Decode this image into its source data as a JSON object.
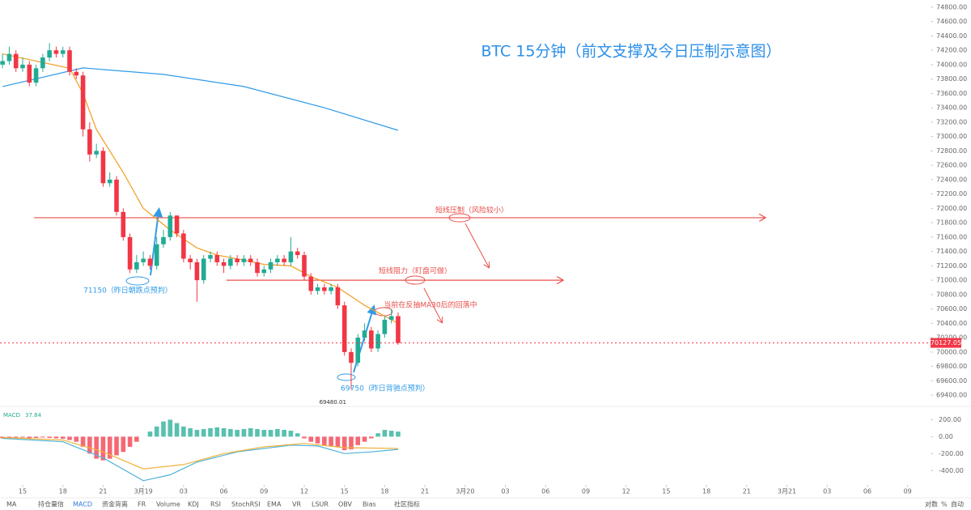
{
  "chart_data": [
    {
      "type": "candlestick",
      "title": "BTC  15分钟（前文支撑及今日压制示意图）",
      "up_color": "#22ab94",
      "down_color": "#f23645",
      "x": [
        -1.5,
        -1,
        -0.5,
        0,
        0.5,
        1,
        1.5,
        2,
        2.5,
        3,
        3.5,
        4,
        4.5,
        5,
        5.5,
        6,
        6.5,
        7,
        7.5,
        8,
        8.5,
        9,
        9.5,
        10,
        10.5,
        11,
        11.5,
        12,
        12.5,
        13,
        13.5,
        14,
        14.5,
        15,
        15.5,
        16,
        16.5,
        17,
        17.5,
        18,
        18.5,
        19,
        19.5,
        20,
        20.5,
        21,
        21.5,
        22,
        22.5,
        23,
        23.5,
        24,
        24.5,
        25,
        25.5,
        26,
        26.5,
        27,
        27.5,
        28
      ],
      "open": [
        74000,
        74050,
        74150,
        73950,
        74000,
        73750,
        73950,
        74100,
        74200,
        74150,
        74200,
        73900,
        73850,
        73100,
        72750,
        72800,
        72350,
        72400,
        71950,
        71600,
        71150,
        71250,
        71300,
        71200,
        71500,
        71600,
        71900,
        71650,
        71300,
        71250,
        71000,
        71300,
        71350,
        71250,
        71200,
        71300,
        71250,
        71300,
        71250,
        71100,
        71150,
        71250,
        71300,
        71250,
        71400,
        71350,
        71050,
        70850,
        70900,
        70850,
        70900,
        70650,
        70000,
        69850,
        70200,
        70300,
        70050,
        70250,
        70450,
        70500
      ],
      "high": [
        74150,
        74250,
        74200,
        74100,
        74050,
        74000,
        74150,
        74300,
        74250,
        74250,
        74250,
        73950,
        73900,
        73200,
        72900,
        72850,
        72500,
        72450,
        72000,
        71650,
        71350,
        71400,
        71350,
        71600,
        71700,
        71950,
        71900,
        71700,
        71350,
        71300,
        71350,
        71400,
        71400,
        71300,
        71350,
        71350,
        71350,
        71350,
        71300,
        71200,
        71300,
        71350,
        71350,
        71600,
        71450,
        71400,
        71100,
        70950,
        70950,
        70950,
        70950,
        70700,
        70050,
        70250,
        70400,
        70350,
        70300,
        70500,
        70600,
        70550
      ],
      "low": [
        73950,
        74000,
        73900,
        73900,
        73700,
        73700,
        73900,
        74050,
        74100,
        74100,
        73850,
        73800,
        73000,
        72650,
        72700,
        72300,
        72300,
        71900,
        71550,
        71100,
        71100,
        71200,
        71150,
        71150,
        71450,
        71550,
        71600,
        71250,
        71150,
        70700,
        70950,
        71250,
        71200,
        71100,
        71150,
        71200,
        71200,
        71200,
        71050,
        71050,
        71100,
        71200,
        71200,
        71200,
        71300,
        71000,
        70800,
        70800,
        70800,
        70800,
        70600,
        69950,
        69480.01,
        69800,
        70150,
        70000,
        70000,
        70200,
        70400,
        70100
      ],
      "close": [
        74050,
        74150,
        73950,
        74000,
        73750,
        73950,
        74100,
        74200,
        74150,
        74200,
        73900,
        73850,
        73100,
        72750,
        72800,
        72350,
        72400,
        71950,
        71600,
        71150,
        71250,
        71300,
        71200,
        71500,
        71600,
        71900,
        71650,
        71300,
        71250,
        71000,
        71300,
        71350,
        71250,
        71200,
        71300,
        71250,
        71300,
        71250,
        71100,
        71150,
        71250,
        71300,
        71250,
        71400,
        71350,
        71050,
        70850,
        70900,
        70850,
        70900,
        70650,
        70000,
        69850,
        70200,
        70300,
        70050,
        70250,
        70450,
        70500,
        70127.05
      ],
      "lines": [
        {
          "color": "#f39c1f",
          "x": [
            -1.5,
            1,
            3.5,
            4.5,
            5.5,
            7.5,
            9,
            11,
            13,
            14.5,
            16.5,
            18,
            20,
            21.5,
            23.5,
            25.5,
            28
          ],
          "values": [
            74150,
            74050,
            73950,
            73600,
            73100,
            72500,
            72000,
            71700,
            71450,
            71350,
            71280,
            71220,
            71200,
            71050,
            70900,
            70650,
            70400
          ]
        },
        {
          "color": "#2f9be8",
          "x": [
            -1.5,
            4.5,
            10.5,
            16.5,
            22.5,
            28
          ],
          "values": [
            73695,
            73955,
            73864,
            73695,
            73400,
            73086
          ]
        }
      ],
      "levels": [
        71870,
        71000
      ],
      "level_color": "#e8504a",
      "annotations": [
        {
          "text": "短线压制（风险较小）"
        },
        {
          "text": "短线阻力（盯盘可做）"
        },
        {
          "text": "当前在反抽MA30后的回落中"
        },
        {
          "text": "71150（昨日朝跌点预判）"
        },
        {
          "text": "69750（昨日背驰点预判）"
        }
      ],
      "xlim": [
        -1.69,
        67.71
      ],
      "ylim": [
        69300,
        74900
      ],
      "xticks": [
        {
          "value": 0,
          "label": "15"
        },
        {
          "value": 3,
          "label": "18"
        },
        {
          "value": 6,
          "label": "21"
        },
        {
          "value": 9,
          "label": "3月19"
        },
        {
          "value": 12,
          "label": "03"
        },
        {
          "value": 15,
          "label": "06"
        },
        {
          "value": 18,
          "label": "09"
        },
        {
          "value": 21,
          "label": "12"
        },
        {
          "value": 24,
          "label": "15"
        },
        {
          "value": 27,
          "label": "18"
        },
        {
          "value": 30,
          "label": "21"
        },
        {
          "value": 33,
          "label": "3月20"
        },
        {
          "value": 36,
          "label": "03"
        },
        {
          "value": 39,
          "label": "06"
        },
        {
          "value": 42,
          "label": "09"
        },
        {
          "value": 45,
          "label": "12"
        },
        {
          "value": 48,
          "label": "15"
        },
        {
          "value": 51,
          "label": "18"
        },
        {
          "value": 54,
          "label": "21"
        },
        {
          "value": 57,
          "label": "3月21"
        },
        {
          "value": 60,
          "label": "03"
        },
        {
          "value": 63,
          "label": "06"
        },
        {
          "value": 66,
          "label": "09"
        }
      ],
      "yticks": [
        {
          "value": 69400,
          "label": "69400.00"
        },
        {
          "value": 69600,
          "label": "69600.00"
        },
        {
          "value": 69800,
          "label": "69800.00"
        },
        {
          "value": 70000,
          "label": "70000.00"
        },
        {
          "value": 70200,
          "label": "70200.00"
        },
        {
          "value": 70400,
          "label": "70400.00"
        },
        {
          "value": 70600,
          "label": "70600.00"
        },
        {
          "value": 70800,
          "label": "70800.00"
        },
        {
          "value": 71000,
          "label": "71000.00"
        },
        {
          "value": 71200,
          "label": "71200.00"
        },
        {
          "value": 71400,
          "label": "71400.00"
        },
        {
          "value": 71600,
          "label": "71600.00"
        },
        {
          "value": 71800,
          "label": "71800.00"
        },
        {
          "value": 72000,
          "label": "72000.00"
        },
        {
          "value": 72200,
          "label": "72200.00"
        },
        {
          "value": 72400,
          "label": "72400.00"
        },
        {
          "value": 72600,
          "label": "72600.00"
        },
        {
          "value": 72800,
          "label": "72800.00"
        },
        {
          "value": 73000,
          "label": "73000.00"
        },
        {
          "value": 73200,
          "label": "73200.00"
        },
        {
          "value": 73400,
          "label": "73400.00"
        },
        {
          "value": 73600,
          "label": "73600.00"
        },
        {
          "value": 73800,
          "label": "73800.00"
        },
        {
          "value": 74000,
          "label": "74000.00"
        },
        {
          "value": 74200,
          "label": "74200.00"
        },
        {
          "value": 74400,
          "label": "74400.00"
        },
        {
          "value": 74600,
          "label": "74600.00"
        },
        {
          "value": 74800,
          "label": "74800.00"
        }
      ]
    },
    {
      "type": "macd",
      "name": "MACD",
      "last_value": 37.84,
      "up_color": "#22ab94",
      "down_color": "#f23645",
      "x": [
        -1.5,
        -1,
        -0.5,
        0,
        0.5,
        1,
        1.5,
        2,
        2.5,
        3,
        3.5,
        4,
        4.5,
        5,
        5.5,
        6,
        6.5,
        7,
        7.5,
        8,
        8.5,
        9,
        9.5,
        10,
        10.5,
        11,
        11.5,
        12,
        12.5,
        13,
        13.5,
        14,
        14.5,
        15,
        15.5,
        16,
        16.5,
        17,
        17.5,
        18,
        18.5,
        19,
        19.5,
        20,
        20.5,
        21,
        21.5,
        22,
        22.5,
        23,
        23.5,
        24,
        24.5,
        25,
        25.5,
        26,
        26.5,
        27,
        27.5,
        28
      ],
      "values": [
        -20,
        -25,
        -15,
        -10,
        -20,
        -15,
        -10,
        -15,
        -20,
        -25,
        -40,
        -60,
        -120,
        -200,
        -260,
        -280,
        -260,
        -220,
        -180,
        -120,
        -60,
        0,
        60,
        120,
        180,
        200,
        160,
        120,
        100,
        80,
        90,
        100,
        110,
        100,
        90,
        80,
        90,
        100,
        90,
        80,
        80,
        90,
        80,
        70,
        40,
        -20,
        -60,
        -80,
        -100,
        -110,
        -120,
        -160,
        -150,
        -100,
        -60,
        -20,
        40,
        80,
        70,
        60
      ],
      "lines": [
        {
          "color": "#4fb3d9",
          "x": [
            -1.5,
            3,
            6,
            9,
            11,
            13,
            16,
            20,
            22,
            24,
            26,
            28
          ],
          "values": [
            -20,
            -60,
            -250,
            -520,
            -450,
            -300,
            -180,
            -100,
            -110,
            -200,
            -180,
            -150
          ]
        },
        {
          "color": "#f0b23c",
          "x": [
            -1.5,
            3,
            6,
            9,
            12,
            15,
            18,
            21,
            24,
            28
          ],
          "values": [
            -10,
            -40,
            -180,
            -380,
            -330,
            -200,
            -120,
            -80,
            -130,
            -140
          ]
        }
      ],
      "ylim": [
        -560,
        300
      ],
      "yticks": [
        {
          "value": 200,
          "label": "200.00"
        },
        {
          "value": 0,
          "label": "0.00"
        },
        {
          "value": -200,
          "label": "-200.00"
        },
        {
          "value": -400,
          "label": "-400.00"
        }
      ]
    }
  ],
  "toolbar": {
    "items": [
      "MA",
      "持仓量信",
      "MACD",
      "资金背离",
      "FR",
      "Volume",
      "KDJ",
      "RSI",
      "StochRSI",
      "EMA",
      "VR",
      "LSUR",
      "OBV",
      "Bias",
      "社区指标"
    ],
    "active": 2,
    "right": [
      "对数",
      "%",
      "自动"
    ]
  }
}
